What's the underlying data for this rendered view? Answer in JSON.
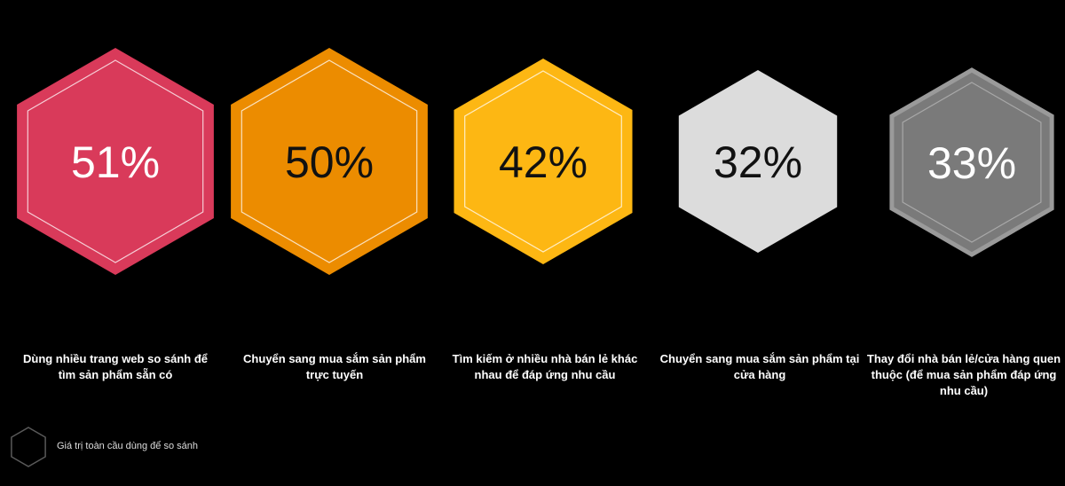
{
  "chart_data": {
    "type": "hexagon-infographic",
    "items": [
      {
        "value": 51,
        "value_label": "51%",
        "label": "Dùng nhiều trang web so sánh để tìm sản phẩm sẵn có",
        "color": "#d93a5a",
        "text_color": "#ffffff"
      },
      {
        "value": 50,
        "value_label": "50%",
        "label": "Chuyển sang mua sắm sản phẩm trực tuyến",
        "color": "#ec8c00",
        "text_color": "#111111"
      },
      {
        "value": 42,
        "value_label": "42%",
        "label": "Tìm kiếm ở nhiều nhà bán lẻ khác nhau để đáp ứng nhu cầu",
        "color": "#fdb713",
        "text_color": "#111111"
      },
      {
        "value": 32,
        "value_label": "32%",
        "label": "Chuyển sang mua sắm sản phẩm tại cửa hàng",
        "color": "#dcdcdc",
        "text_color": "#111111"
      },
      {
        "value": 33,
        "value_label": "33%",
        "label": "Thay đổi nhà bán lẻ/cửa hàng quen thuộc (để mua sản phẩm đáp ứng nhu cầu)",
        "color": "#7a7a7a",
        "text_color": "#ffffff"
      }
    ],
    "legend": {
      "label": "Giá trị toàn cầu dùng để so sánh"
    }
  }
}
